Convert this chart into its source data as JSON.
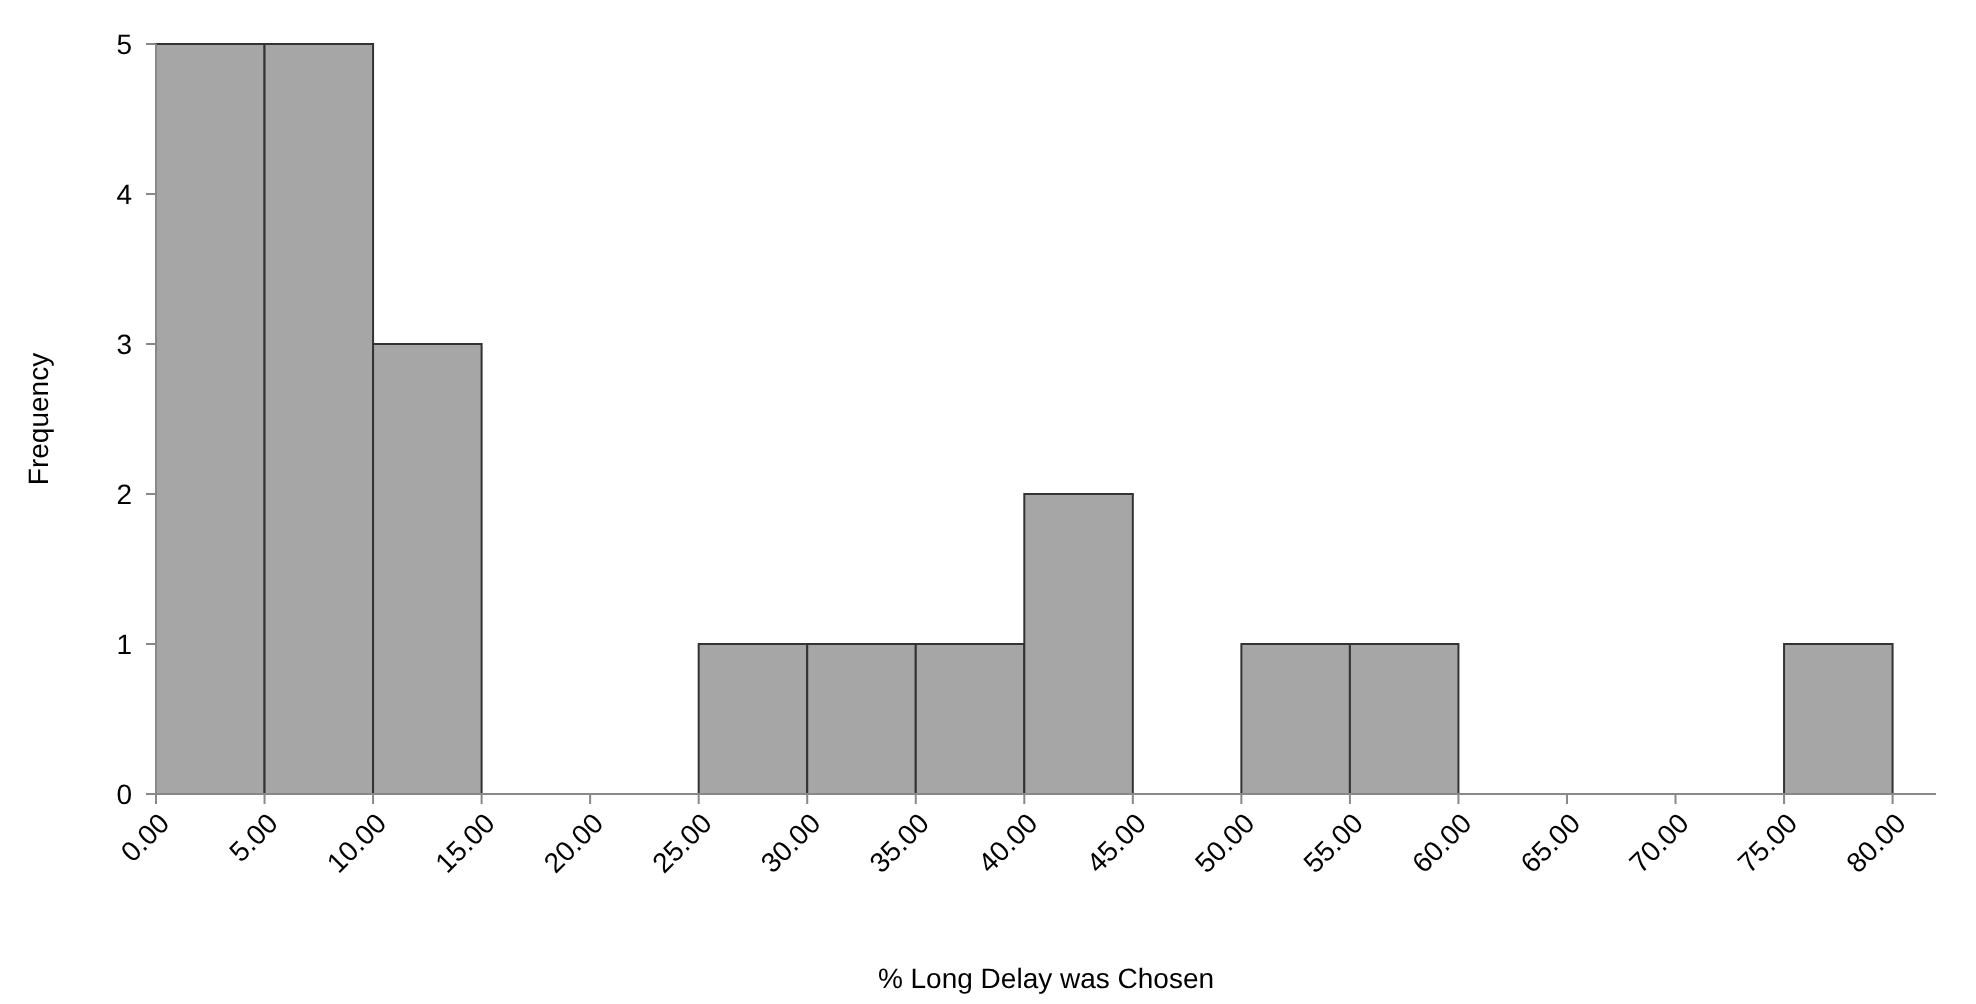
{
  "chart_data": {
    "type": "histogram",
    "xlabel": "% Long Delay was Chosen",
    "ylabel": "Frequency",
    "bins": [
      0,
      5,
      10,
      15,
      20,
      25,
      30,
      35,
      40,
      45,
      50,
      55,
      60,
      65,
      70,
      75,
      80
    ],
    "values": [
      5,
      5,
      3,
      0,
      0,
      1,
      1,
      1,
      2,
      0,
      1,
      1,
      0,
      0,
      0,
      1
    ],
    "color": "#a6a6a6",
    "xlim": [
      0,
      82
    ],
    "xticks": [
      {
        "value": 0,
        "label": "0.00"
      },
      {
        "value": 5,
        "label": "5.00"
      },
      {
        "value": 10,
        "label": "10.00"
      },
      {
        "value": 15,
        "label": "15.00"
      },
      {
        "value": 20,
        "label": "20.00"
      },
      {
        "value": 25,
        "label": "25.00"
      },
      {
        "value": 30,
        "label": "30.00"
      },
      {
        "value": 35,
        "label": "35.00"
      },
      {
        "value": 40,
        "label": "40.00"
      },
      {
        "value": 45,
        "label": "45.00"
      },
      {
        "value": 50,
        "label": "50.00"
      },
      {
        "value": 55,
        "label": "55.00"
      },
      {
        "value": 60,
        "label": "60.00"
      },
      {
        "value": 65,
        "label": "65.00"
      },
      {
        "value": 70,
        "label": "70.00"
      },
      {
        "value": 75,
        "label": "75.00"
      },
      {
        "value": 80,
        "label": "80.00"
      }
    ],
    "ylim": [
      0,
      5
    ],
    "yticks": [
      0,
      1,
      2,
      3,
      4,
      5
    ],
    "grid": false
  }
}
